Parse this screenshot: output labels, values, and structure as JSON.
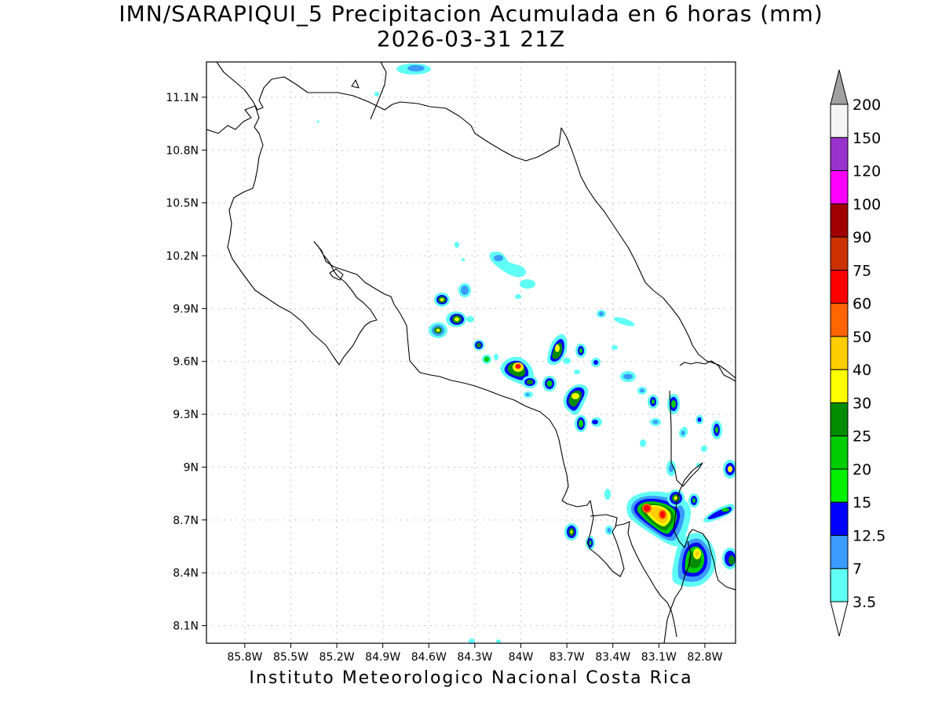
{
  "title": "IMN/SARAPIQUI_5 Precipitacion Acumulada en 6 horas (mm)",
  "subtitle": "2026-03-31 21Z",
  "footer": "Instituto Meteorologico Nacional Costa Rica",
  "map": {
    "lon_range": [
      -86.05,
      -82.6
    ],
    "lat_range": [
      8.0,
      11.3
    ],
    "lon_ticks": [
      {
        "value": -85.8,
        "label": "85.8W"
      },
      {
        "value": -85.5,
        "label": "85.5W"
      },
      {
        "value": -85.2,
        "label": "85.2W"
      },
      {
        "value": -84.9,
        "label": "84.9W"
      },
      {
        "value": -84.6,
        "label": "84.6W"
      },
      {
        "value": -84.3,
        "label": "84.3W"
      },
      {
        "value": -84.0,
        "label": "84W"
      },
      {
        "value": -83.7,
        "label": "83.7W"
      },
      {
        "value": -83.4,
        "label": "83.4W"
      },
      {
        "value": -83.1,
        "label": "83.1W"
      },
      {
        "value": -82.8,
        "label": "82.8W"
      }
    ],
    "lat_ticks": [
      {
        "value": 11.1,
        "label": "11.1N"
      },
      {
        "value": 10.8,
        "label": "10.8N"
      },
      {
        "value": 10.5,
        "label": "10.5N"
      },
      {
        "value": 10.2,
        "label": "10.2N"
      },
      {
        "value": 9.9,
        "label": "9.9N"
      },
      {
        "value": 9.6,
        "label": "9.6N"
      },
      {
        "value": 9.3,
        "label": "9.3N"
      },
      {
        "value": 9.0,
        "label": "9N"
      },
      {
        "value": 8.7,
        "label": "8.7N"
      },
      {
        "value": 8.4,
        "label": "8.4N"
      },
      {
        "value": 8.1,
        "label": "8.1N"
      }
    ],
    "grid": true,
    "boundary_color": "#000000"
  },
  "colorbar": {
    "labels": [
      "3.5",
      "7",
      "12.5",
      "15",
      "20",
      "25",
      "30",
      "40",
      "50",
      "60",
      "75",
      "90",
      "100",
      "120",
      "150",
      "200"
    ],
    "colors": [
      "#5ffff5",
      "#3b9bff",
      "#0000ff",
      "#00f000",
      "#00cd00",
      "#008b00",
      "#ffff00",
      "#ffcd00",
      "#ff6400",
      "#ff0000",
      "#cd3200",
      "#a00000",
      "#ff00ff",
      "#9932cc",
      "#f5f5f5"
    ],
    "low_color": "#ffffff",
    "high_color": "#a0a0a0"
  },
  "chart_data": {
    "type": "heatmap",
    "title": "IMN/SARAPIQUI_5 Precipitacion Acumulada en 6 horas (mm)",
    "subtitle": "2026-03-31 21Z",
    "xlim": [
      -86.05,
      -82.6
    ],
    "ylim": [
      8.0,
      11.3
    ],
    "grid": true,
    "legend": "right",
    "cells": [
      {
        "lon": -84.48,
        "lat": 11.25,
        "value": 5
      },
      {
        "lon": -84.43,
        "lat": 9.82,
        "value": 22
      },
      {
        "lon": -84.43,
        "lat": 9.93,
        "value": 18
      },
      {
        "lon": -84.33,
        "lat": 9.84,
        "value": 20
      },
      {
        "lon": -84.28,
        "lat": 9.94,
        "value": 8
      },
      {
        "lon": -84.2,
        "lat": 9.69,
        "value": 18
      },
      {
        "lon": -84.15,
        "lat": 9.61,
        "value": 14
      },
      {
        "lon": -84.07,
        "lat": 10.2,
        "value": 5
      },
      {
        "lon": -83.96,
        "lat": 9.56,
        "value": 75
      },
      {
        "lon": -83.89,
        "lat": 9.48,
        "value": 22
      },
      {
        "lon": -83.78,
        "lat": 9.5,
        "value": 18
      },
      {
        "lon": -83.73,
        "lat": 9.68,
        "value": 30
      },
      {
        "lon": -83.6,
        "lat": 9.65,
        "value": 14
      },
      {
        "lon": -83.54,
        "lat": 9.41,
        "value": 35
      },
      {
        "lon": -83.51,
        "lat": 9.28,
        "value": 22
      },
      {
        "lon": -83.42,
        "lat": 9.25,
        "value": 14
      },
      {
        "lon": -83.37,
        "lat": 9.37,
        "value": 8
      },
      {
        "lon": -83.18,
        "lat": 9.35,
        "value": 18
      },
      {
        "lon": -83.05,
        "lat": 8.8,
        "value": 60
      },
      {
        "lon": -82.93,
        "lat": 8.73,
        "value": 65
      },
      {
        "lon": -82.87,
        "lat": 8.84,
        "value": 22
      },
      {
        "lon": -82.78,
        "lat": 8.49,
        "value": 35
      },
      {
        "lon": -82.67,
        "lat": 8.46,
        "value": 14
      },
      {
        "lon": -82.62,
        "lat": 8.99,
        "value": 22
      },
      {
        "lon": -82.73,
        "lat": 9.24,
        "value": 18
      },
      {
        "lon": -82.88,
        "lat": 9.38,
        "value": 18
      },
      {
        "lon": -83.58,
        "lat": 8.64,
        "value": 22
      },
      {
        "lon": -83.47,
        "lat": 8.57,
        "value": 18
      },
      {
        "lon": -83.33,
        "lat": 8.64,
        "value": 8
      }
    ]
  }
}
